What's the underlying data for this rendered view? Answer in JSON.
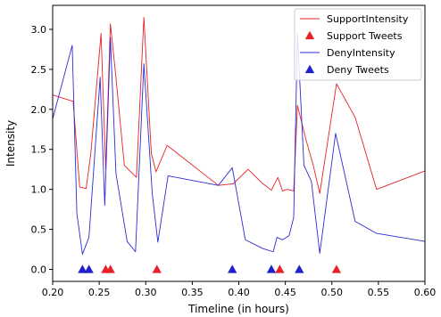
{
  "chart_data": {
    "type": "line",
    "xlabel": "Timeline (in hours)",
    "ylabel": "Intensity",
    "xlim": [
      0.2,
      0.6
    ],
    "ylim": [
      -0.15,
      3.3
    ],
    "x_ticks": [
      0.2,
      0.25,
      0.3,
      0.35,
      0.4,
      0.45,
      0.5,
      0.55,
      0.6
    ],
    "x_tick_labels": [
      "0.20",
      "0.25",
      "0.30",
      "0.35",
      "0.40",
      "0.45",
      "0.50",
      "0.55",
      "0.60"
    ],
    "y_ticks": [
      0.0,
      0.5,
      1.0,
      1.5,
      2.0,
      2.5,
      3.0
    ],
    "y_tick_labels": [
      "0.0",
      "0.5",
      "1.0",
      "1.5",
      "2.0",
      "2.5",
      "3.0"
    ],
    "grid": false,
    "legend_position": "top-right",
    "series": [
      {
        "name": "SupportIntensity",
        "kind": "line",
        "color": "#e8202a",
        "points": [
          [
            0.2,
            2.18
          ],
          [
            0.222,
            2.1
          ],
          [
            0.229,
            1.03
          ],
          [
            0.236,
            1.01
          ],
          [
            0.241,
            1.45
          ],
          [
            0.252,
            2.95
          ],
          [
            0.257,
            1.25
          ],
          [
            0.262,
            3.07
          ],
          [
            0.268,
            2.4
          ],
          [
            0.277,
            1.3
          ],
          [
            0.29,
            1.15
          ],
          [
            0.298,
            3.15
          ],
          [
            0.306,
            1.45
          ],
          [
            0.311,
            1.22
          ],
          [
            0.323,
            1.55
          ],
          [
            0.378,
            1.05
          ],
          [
            0.394,
            1.07
          ],
          [
            0.41,
            1.25
          ],
          [
            0.425,
            1.08
          ],
          [
            0.435,
            0.99
          ],
          [
            0.442,
            1.15
          ],
          [
            0.447,
            0.98
          ],
          [
            0.452,
            1.0
          ],
          [
            0.459,
            0.98
          ],
          [
            0.463,
            2.05
          ],
          [
            0.472,
            1.63
          ],
          [
            0.48,
            1.3
          ],
          [
            0.487,
            0.95
          ],
          [
            0.505,
            2.32
          ],
          [
            0.525,
            1.9
          ],
          [
            0.548,
            1.0
          ],
          [
            0.6,
            1.23
          ]
        ]
      },
      {
        "name": "Support Tweets",
        "kind": "markers",
        "marker": "triangle",
        "color": "#e8202a",
        "x": [
          0.257,
          0.262,
          0.312,
          0.444,
          0.505
        ],
        "y": [
          0.0,
          0.0,
          0.0,
          0.0,
          0.0
        ]
      },
      {
        "name": "DenyIntensity",
        "kind": "line",
        "color": "#2b2bd6",
        "points": [
          [
            0.2,
            1.88
          ],
          [
            0.221,
            2.8
          ],
          [
            0.226,
            0.7
          ],
          [
            0.232,
            0.19
          ],
          [
            0.239,
            0.4
          ],
          [
            0.251,
            2.4
          ],
          [
            0.256,
            0.8
          ],
          [
            0.262,
            2.9
          ],
          [
            0.268,
            1.2
          ],
          [
            0.28,
            0.35
          ],
          [
            0.289,
            0.22
          ],
          [
            0.298,
            2.57
          ],
          [
            0.307,
            0.95
          ],
          [
            0.313,
            0.34
          ],
          [
            0.324,
            1.17
          ],
          [
            0.378,
            1.05
          ],
          [
            0.393,
            1.27
          ],
          [
            0.407,
            0.37
          ],
          [
            0.426,
            0.26
          ],
          [
            0.437,
            0.22
          ],
          [
            0.441,
            0.4
          ],
          [
            0.447,
            0.37
          ],
          [
            0.454,
            0.42
          ],
          [
            0.459,
            0.65
          ],
          [
            0.463,
            2.95
          ],
          [
            0.47,
            1.3
          ],
          [
            0.478,
            1.1
          ],
          [
            0.487,
            0.2
          ],
          [
            0.504,
            1.7
          ],
          [
            0.525,
            0.6
          ],
          [
            0.548,
            0.45
          ],
          [
            0.6,
            0.35
          ]
        ]
      },
      {
        "name": "Deny Tweets",
        "kind": "markers",
        "marker": "triangle",
        "color": "#2020c8",
        "x": [
          0.232,
          0.239,
          0.393,
          0.435,
          0.465
        ],
        "y": [
          0.0,
          0.0,
          0.0,
          0.0,
          0.0
        ]
      }
    ]
  }
}
